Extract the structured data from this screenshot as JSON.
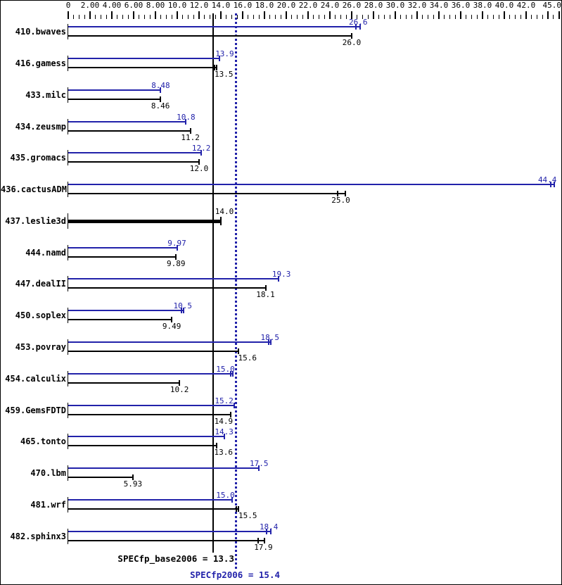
{
  "chart_data": {
    "type": "bar",
    "orientation": "horizontal",
    "title": "",
    "axis": {
      "min": 0,
      "max": 45,
      "minor_step": 0.5,
      "major_step": 2,
      "labels": [
        {
          "v": 0,
          "t": "0"
        },
        {
          "v": 2,
          "t": "2.00"
        },
        {
          "v": 4,
          "t": "4.00"
        },
        {
          "v": 6,
          "t": "6.00"
        },
        {
          "v": 8,
          "t": "8.00"
        },
        {
          "v": 10,
          "t": "10.0"
        },
        {
          "v": 12,
          "t": "12.0"
        },
        {
          "v": 14,
          "t": "14.0"
        },
        {
          "v": 16,
          "t": "16.0"
        },
        {
          "v": 18,
          "t": "18.0"
        },
        {
          "v": 20,
          "t": "20.0"
        },
        {
          "v": 22,
          "t": "22.0"
        },
        {
          "v": 24,
          "t": "24.0"
        },
        {
          "v": 26,
          "t": "26.0"
        },
        {
          "v": 28,
          "t": "28.0"
        },
        {
          "v": 30,
          "t": "30.0"
        },
        {
          "v": 32,
          "t": "32.0"
        },
        {
          "v": 34,
          "t": "34.0"
        },
        {
          "v": 36,
          "t": "36.0"
        },
        {
          "v": 38,
          "t": "38.0"
        },
        {
          "v": 40,
          "t": "40.0"
        },
        {
          "v": 42,
          "t": "42.0"
        },
        {
          "v": 45,
          "t": "45.0"
        }
      ]
    },
    "colors": {
      "peak": "#2222aa",
      "base": "#000000"
    },
    "series": [
      {
        "name": "peak (SPECfp2006)",
        "color": "#2222aa"
      },
      {
        "name": "base (SPECfp_base2006)",
        "color": "#000000"
      }
    ],
    "benchmarks": [
      {
        "name": "410.bwaves",
        "peak": 26.6,
        "base": 26.0,
        "peak_label": "26.6",
        "base_label": "26.0",
        "peak_err": [
          26.4,
          26.8
        ],
        "base_err": null,
        "peak_dx": 0,
        "base_dx": 0,
        "single": false
      },
      {
        "name": "416.gamess",
        "peak": 13.9,
        "base": 13.5,
        "peak_label": "13.9",
        "base_label": "13.5",
        "peak_err": null,
        "base_err": [
          13.4,
          13.6
        ],
        "peak_dx": 7,
        "base_dx": 12,
        "single": false
      },
      {
        "name": "433.milc",
        "peak": 8.48,
        "base": 8.46,
        "peak_label": "8.48",
        "base_label": "8.46",
        "peak_err": null,
        "base_err": null,
        "peak_dx": 0,
        "base_dx": 0,
        "single": false
      },
      {
        "name": "434.zeusmp",
        "peak": 10.8,
        "base": 11.2,
        "peak_label": "10.8",
        "base_label": "11.2",
        "peak_err": null,
        "base_err": null,
        "peak_dx": 0,
        "base_dx": 0,
        "single": false
      },
      {
        "name": "435.gromacs",
        "peak": 12.2,
        "base": 12.0,
        "peak_label": "12.2",
        "base_label": "12.0",
        "peak_err": null,
        "base_err": null,
        "peak_dx": 0,
        "base_dx": 0,
        "single": false
      },
      {
        "name": "436.cactusADM",
        "peak": 44.4,
        "base": 25.0,
        "peak_label": "44.4",
        "base_label": "25.0",
        "peak_err": [
          44.25,
          44.6
        ],
        "base_err": [
          24.7,
          25.4
        ],
        "peak_dx": -7,
        "base_dx": 0,
        "single": false
      },
      {
        "name": "437.leslie3d",
        "peak": null,
        "base": 14.0,
        "peak_label": "",
        "base_label": "14.0",
        "peak_err": null,
        "base_err": null,
        "peak_dx": 0,
        "base_dx": 5,
        "single": true
      },
      {
        "name": "444.namd",
        "peak": 9.97,
        "base": 9.89,
        "peak_label": "9.97",
        "base_label": "9.89",
        "peak_err": null,
        "base_err": null,
        "peak_dx": 0,
        "base_dx": 0,
        "single": false
      },
      {
        "name": "447.dealII",
        "peak": 19.3,
        "base": 18.1,
        "peak_label": "19.3",
        "base_label": "18.1",
        "peak_err": null,
        "base_err": null,
        "peak_dx": 4,
        "base_dx": 0,
        "single": false
      },
      {
        "name": "450.soplex",
        "peak": 10.5,
        "base": 9.49,
        "peak_label": "10.5",
        "base_label": "9.49",
        "peak_err": [
          10.4,
          10.6
        ],
        "base_err": null,
        "peak_dx": 0,
        "base_dx": 0,
        "single": false
      },
      {
        "name": "453.povray",
        "peak": 18.5,
        "base": 15.6,
        "peak_label": "18.5",
        "base_label": "15.6",
        "peak_err": [
          18.4,
          18.6
        ],
        "base_err": null,
        "peak_dx": 0,
        "base_dx": 13,
        "single": false
      },
      {
        "name": "454.calculix",
        "peak": 15.0,
        "base": 10.2,
        "peak_label": "15.0",
        "base_label": "10.2",
        "peak_err": [
          14.9,
          15.1
        ],
        "base_err": null,
        "peak_dx": -9,
        "base_dx": 0,
        "single": false
      },
      {
        "name": "459.GemsFDTD",
        "peak": 15.2,
        "base": 14.9,
        "peak_label": "15.2",
        "base_label": "14.9",
        "peak_err": null,
        "base_err": null,
        "peak_dx": -14,
        "base_dx": -10,
        "single": false
      },
      {
        "name": "465.tonto",
        "peak": 14.3,
        "base": 13.6,
        "peak_label": "14.3",
        "base_label": "13.6",
        "peak_err": null,
        "base_err": null,
        "peak_dx": 0,
        "base_dx": 10,
        "single": false
      },
      {
        "name": "470.lbm",
        "peak": 17.5,
        "base": 5.93,
        "peak_label": "17.5",
        "base_label": "5.93",
        "peak_err": null,
        "base_err": null,
        "peak_dx": 0,
        "base_dx": 0,
        "single": false
      },
      {
        "name": "481.wrf",
        "peak": 15.0,
        "base": 15.5,
        "peak_label": "15.0",
        "base_label": "15.5",
        "peak_err": null,
        "base_err": [
          15.4,
          15.6
        ],
        "peak_dx": -9,
        "base_dx": 15,
        "single": false
      },
      {
        "name": "482.sphinx3",
        "peak": 18.4,
        "base": 17.9,
        "peak_label": "18.4",
        "base_label": "17.9",
        "peak_err": [
          18.2,
          18.6
        ],
        "base_err": [
          17.45,
          18.0
        ],
        "peak_dx": 0,
        "base_dx": 0,
        "single": false
      }
    ],
    "reference_lines": [
      {
        "name": "base-mean",
        "value": 13.3,
        "style": "solid",
        "color": "#000000"
      },
      {
        "name": "peak-mean",
        "value": 15.4,
        "style": "dotted",
        "color": "#2222aa"
      }
    ],
    "summary": {
      "base_text": "SPECfp_base2006 = 13.3",
      "peak_text": "SPECfp2006 = 15.4"
    }
  }
}
